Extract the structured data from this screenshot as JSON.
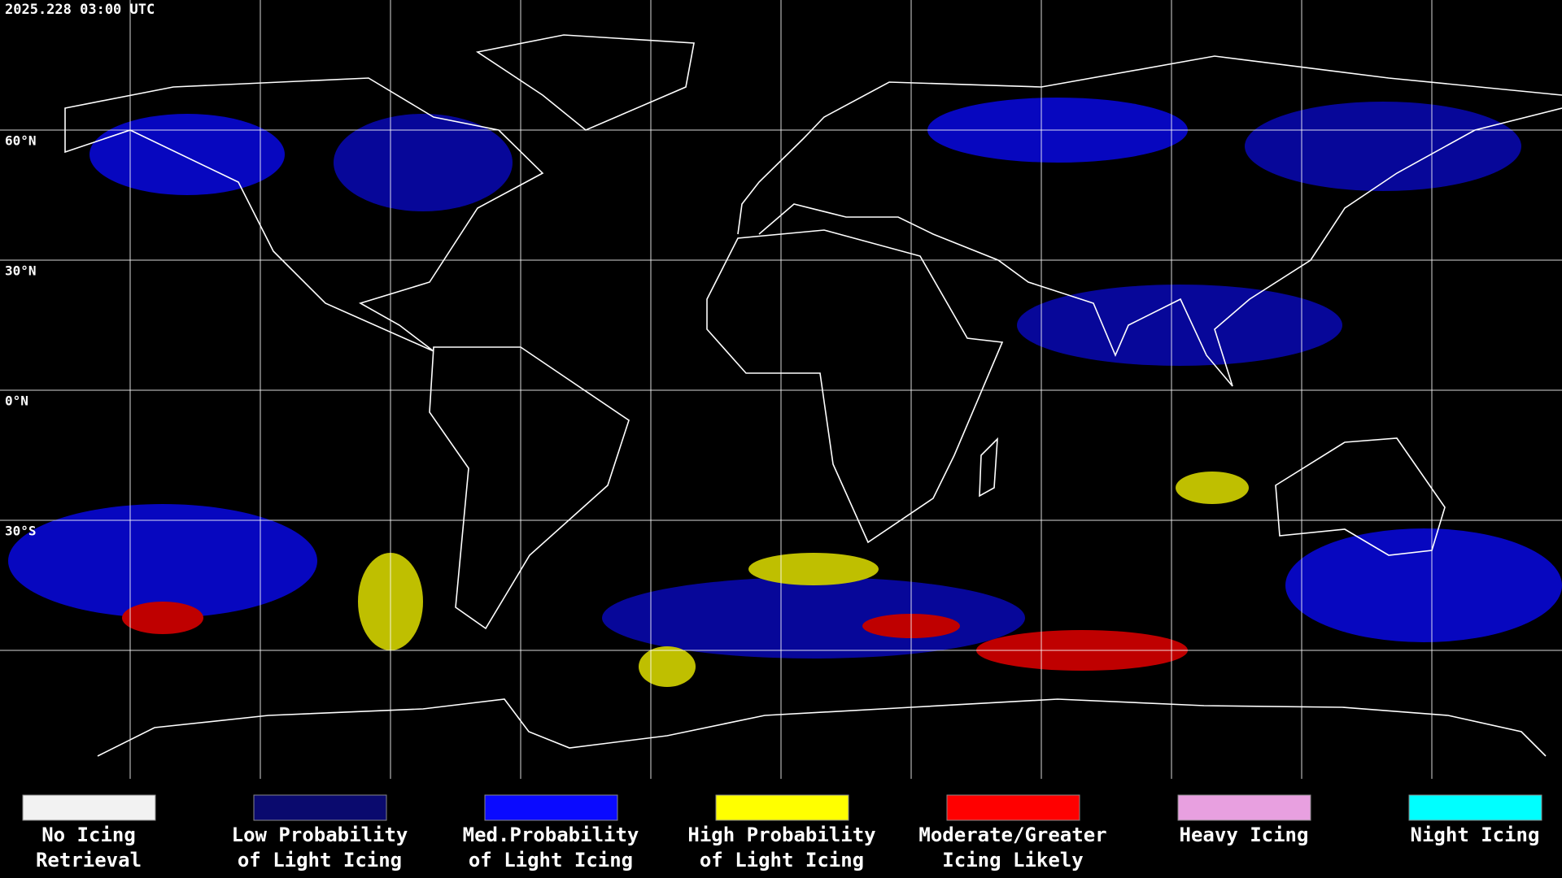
{
  "header": {
    "timestamp": "2025.228 03:00 UTC"
  },
  "map": {
    "latitude_labels": [
      "60°N",
      "30°N",
      "0°N",
      "30°S"
    ]
  },
  "legend": {
    "items": [
      {
        "lines": [
          "No Icing",
          "Retrieval"
        ],
        "color": "#f2f2f2"
      },
      {
        "lines": [
          "Low Probability",
          "of Light Icing"
        ],
        "color": "#0a0a6e"
      },
      {
        "lines": [
          "Med.Probability",
          "of Light Icing"
        ],
        "color": "#0a0aff"
      },
      {
        "lines": [
          "High Probability",
          "of Light Icing"
        ],
        "color": "#ffff00"
      },
      {
        "lines": [
          "Moderate/Greater",
          "Icing Likely"
        ],
        "color": "#ff0000"
      },
      {
        "lines": [
          "Heavy Icing"
        ],
        "color": "#e8a0e0"
      },
      {
        "lines": [
          "Night Icing"
        ],
        "color": "#00ffff"
      }
    ]
  }
}
